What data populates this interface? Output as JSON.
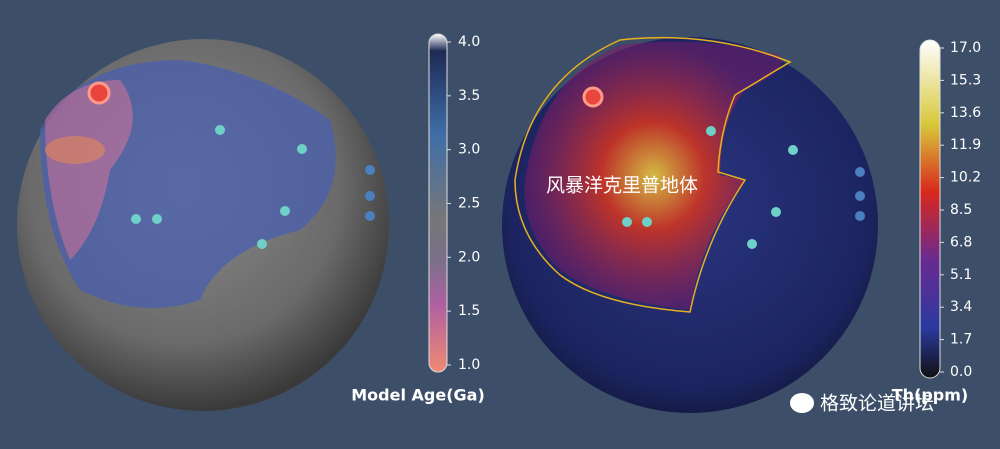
{
  "left_map": {
    "colorbar": {
      "title": "Model Age(Ga)",
      "ticks": [
        {
          "value": 4,
          "label": "4.0"
        },
        {
          "value": 3.5,
          "label": "3.5"
        },
        {
          "value": 3,
          "label": "3.0"
        },
        {
          "value": 2.5,
          "label": "2.5"
        },
        {
          "value": 2,
          "label": "2.0"
        },
        {
          "value": 1.5,
          "label": "1.5"
        },
        {
          "value": 1,
          "label": "1.0"
        }
      ]
    }
  },
  "right_map": {
    "annotation": "风暴洋克里普地体",
    "colorbar": {
      "title": "Th(ppm)",
      "ticks": [
        {
          "value": 17,
          "label": "17.0"
        },
        15.3,
        13.6,
        11.9,
        10.2,
        8.5,
        6.8,
        5.1,
        3.4,
        1.7,
        {
          "value": 0,
          "label": "0.0"
        }
      ]
    }
  },
  "watermark": "格致论道讲坛"
}
